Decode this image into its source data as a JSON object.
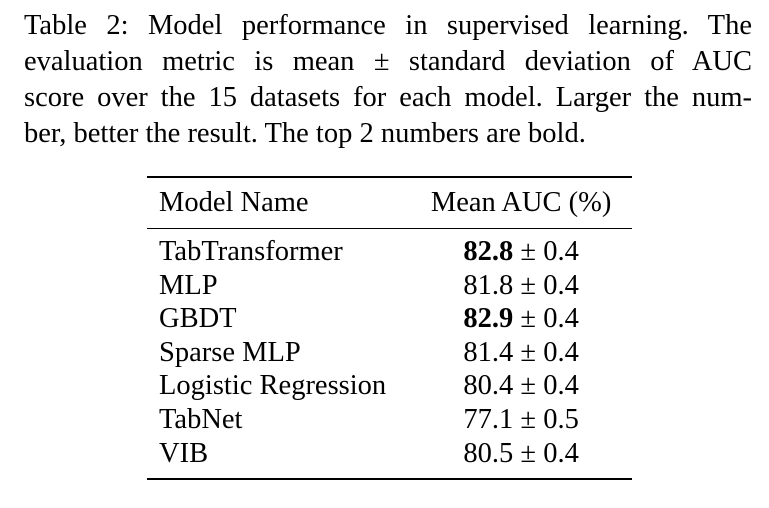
{
  "caption": {
    "lines": [
      "Table 2: Model performance in supervised learning. The",
      "evaluation metric is mean ± standard deviation of AUC",
      "score over the 15 datasets for each model. Larger the num-",
      "ber, better the result. The top 2 numbers are bold."
    ]
  },
  "table": {
    "headers": [
      "Model Name",
      "Mean AUC (%)"
    ],
    "rows": [
      {
        "model": "TabTransformer",
        "mean": "82.8",
        "pm": " ± 0.4",
        "bold": true
      },
      {
        "model": "MLP",
        "mean": "81.8",
        "pm": " ± 0.4",
        "bold": false
      },
      {
        "model": "GBDT",
        "mean": "82.9",
        "pm": " ± 0.4",
        "bold": true
      },
      {
        "model": "Sparse MLP",
        "mean": "81.4",
        "pm": " ± 0.4",
        "bold": false
      },
      {
        "model": "Logistic Regression",
        "mean": "80.4",
        "pm": " ± 0.4",
        "bold": false
      },
      {
        "model": "TabNet",
        "mean": "77.1",
        "pm": " ± 0.5",
        "bold": false
      },
      {
        "model": "VIB",
        "mean": "80.5",
        "pm": " ± 0.4",
        "bold": false
      }
    ]
  }
}
